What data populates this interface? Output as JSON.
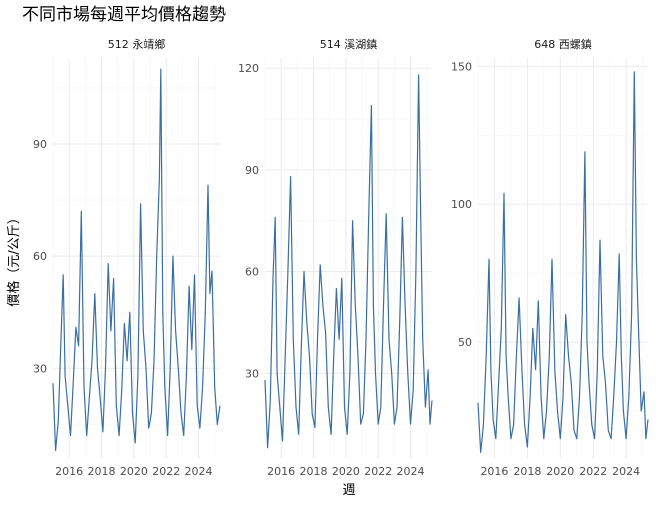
{
  "chart_data": {
    "type": "line",
    "title": "不同市場每週平均價格趨勢",
    "xlabel": "週",
    "ylabel": "價格（元/公斤）",
    "x_ticks": [
      "2016",
      "2018",
      "2020",
      "2022",
      "2024"
    ],
    "xlim": [
      "2015-01-01",
      "2025-04-30"
    ],
    "series_color": "#3a6ea5",
    "grid": true,
    "facets": [
      {
        "name": "512 永靖鄉",
        "ylim": [
          6,
          113
        ],
        "y_ticks": [
          30,
          60,
          90
        ],
        "values": [
          {
            "x": "2015-01-01",
            "y": 26
          },
          {
            "x": "2015-03-01",
            "y": 8
          },
          {
            "x": "2015-05-01",
            "y": 16
          },
          {
            "x": "2015-07-01",
            "y": 38
          },
          {
            "x": "2015-08-20",
            "y": 55
          },
          {
            "x": "2015-10-01",
            "y": 28
          },
          {
            "x": "2015-12-01",
            "y": 20
          },
          {
            "x": "2016-02-01",
            "y": 12
          },
          {
            "x": "2016-04-01",
            "y": 26
          },
          {
            "x": "2016-06-01",
            "y": 41
          },
          {
            "x": "2016-08-01",
            "y": 36
          },
          {
            "x": "2016-10-01",
            "y": 72
          },
          {
            "x": "2016-12-01",
            "y": 25
          },
          {
            "x": "2017-02-01",
            "y": 12
          },
          {
            "x": "2017-04-01",
            "y": 22
          },
          {
            "x": "2017-06-01",
            "y": 32
          },
          {
            "x": "2017-08-01",
            "y": 50
          },
          {
            "x": "2017-10-01",
            "y": 30
          },
          {
            "x": "2017-12-01",
            "y": 22
          },
          {
            "x": "2018-02-01",
            "y": 13
          },
          {
            "x": "2018-04-01",
            "y": 30
          },
          {
            "x": "2018-06-01",
            "y": 58
          },
          {
            "x": "2018-08-01",
            "y": 40
          },
          {
            "x": "2018-10-01",
            "y": 54
          },
          {
            "x": "2018-12-01",
            "y": 20
          },
          {
            "x": "2019-02-01",
            "y": 12
          },
          {
            "x": "2019-04-01",
            "y": 24
          },
          {
            "x": "2019-06-01",
            "y": 42
          },
          {
            "x": "2019-08-01",
            "y": 32
          },
          {
            "x": "2019-10-01",
            "y": 45
          },
          {
            "x": "2019-12-01",
            "y": 18
          },
          {
            "x": "2020-02-01",
            "y": 10
          },
          {
            "x": "2020-04-01",
            "y": 28
          },
          {
            "x": "2020-06-01",
            "y": 74
          },
          {
            "x": "2020-08-01",
            "y": 40
          },
          {
            "x": "2020-10-01",
            "y": 30
          },
          {
            "x": "2020-12-01",
            "y": 14
          },
          {
            "x": "2021-02-01",
            "y": 18
          },
          {
            "x": "2021-04-01",
            "y": 32
          },
          {
            "x": "2021-06-01",
            "y": 60
          },
          {
            "x": "2021-08-01",
            "y": 81
          },
          {
            "x": "2021-09-01",
            "y": 110
          },
          {
            "x": "2021-10-15",
            "y": 45
          },
          {
            "x": "2021-12-01",
            "y": 25
          },
          {
            "x": "2022-02-01",
            "y": 12
          },
          {
            "x": "2022-04-01",
            "y": 30
          },
          {
            "x": "2022-06-01",
            "y": 60
          },
          {
            "x": "2022-08-01",
            "y": 40
          },
          {
            "x": "2022-10-01",
            "y": 30
          },
          {
            "x": "2022-12-01",
            "y": 18
          },
          {
            "x": "2023-02-01",
            "y": 12
          },
          {
            "x": "2023-04-01",
            "y": 28
          },
          {
            "x": "2023-06-01",
            "y": 52
          },
          {
            "x": "2023-08-01",
            "y": 35
          },
          {
            "x": "2023-10-01",
            "y": 55
          },
          {
            "x": "2023-12-01",
            "y": 20
          },
          {
            "x": "2024-02-01",
            "y": 14
          },
          {
            "x": "2024-04-01",
            "y": 25
          },
          {
            "x": "2024-06-01",
            "y": 45
          },
          {
            "x": "2024-08-01",
            "y": 79
          },
          {
            "x": "2024-09-15",
            "y": 50
          },
          {
            "x": "2024-11-01",
            "y": 56
          },
          {
            "x": "2025-01-01",
            "y": 25
          },
          {
            "x": "2025-03-01",
            "y": 15
          },
          {
            "x": "2025-04-30",
            "y": 20
          }
        ]
      },
      {
        "name": "514 溪湖鎮",
        "ylim": [
          5,
          123
        ],
        "y_ticks": [
          30,
          60,
          90,
          120
        ],
        "values": [
          {
            "x": "2015-01-01",
            "y": 28
          },
          {
            "x": "2015-03-01",
            "y": 8
          },
          {
            "x": "2015-05-01",
            "y": 22
          },
          {
            "x": "2015-07-01",
            "y": 58
          },
          {
            "x": "2015-08-20",
            "y": 76
          },
          {
            "x": "2015-10-01",
            "y": 30
          },
          {
            "x": "2015-12-01",
            "y": 20
          },
          {
            "x": "2016-02-01",
            "y": 10
          },
          {
            "x": "2016-04-01",
            "y": 35
          },
          {
            "x": "2016-06-01",
            "y": 60
          },
          {
            "x": "2016-08-01",
            "y": 88
          },
          {
            "x": "2016-10-01",
            "y": 40
          },
          {
            "x": "2016-12-01",
            "y": 20
          },
          {
            "x": "2017-02-01",
            "y": 12
          },
          {
            "x": "2017-04-01",
            "y": 38
          },
          {
            "x": "2017-06-01",
            "y": 60
          },
          {
            "x": "2017-08-01",
            "y": 45
          },
          {
            "x": "2017-10-01",
            "y": 35
          },
          {
            "x": "2017-12-01",
            "y": 18
          },
          {
            "x": "2018-02-01",
            "y": 14
          },
          {
            "x": "2018-04-01",
            "y": 40
          },
          {
            "x": "2018-06-01",
            "y": 62
          },
          {
            "x": "2018-08-01",
            "y": 50
          },
          {
            "x": "2018-10-01",
            "y": 42
          },
          {
            "x": "2018-12-01",
            "y": 20
          },
          {
            "x": "2019-02-01",
            "y": 12
          },
          {
            "x": "2019-04-01",
            "y": 35
          },
          {
            "x": "2019-06-01",
            "y": 55
          },
          {
            "x": "2019-08-01",
            "y": 40
          },
          {
            "x": "2019-10-01",
            "y": 58
          },
          {
            "x": "2019-12-01",
            "y": 20
          },
          {
            "x": "2020-02-01",
            "y": 12
          },
          {
            "x": "2020-04-01",
            "y": 30
          },
          {
            "x": "2020-06-01",
            "y": 75
          },
          {
            "x": "2020-08-01",
            "y": 50
          },
          {
            "x": "2020-10-01",
            "y": 35
          },
          {
            "x": "2020-12-01",
            "y": 15
          },
          {
            "x": "2021-02-01",
            "y": 18
          },
          {
            "x": "2021-04-01",
            "y": 40
          },
          {
            "x": "2021-06-01",
            "y": 76
          },
          {
            "x": "2021-08-01",
            "y": 109
          },
          {
            "x": "2021-09-15",
            "y": 50
          },
          {
            "x": "2021-11-01",
            "y": 30
          },
          {
            "x": "2022-01-01",
            "y": 15
          },
          {
            "x": "2022-03-01",
            "y": 20
          },
          {
            "x": "2022-05-01",
            "y": 50
          },
          {
            "x": "2022-07-01",
            "y": 77
          },
          {
            "x": "2022-09-01",
            "y": 40
          },
          {
            "x": "2022-11-01",
            "y": 30
          },
          {
            "x": "2023-01-01",
            "y": 15
          },
          {
            "x": "2023-03-01",
            "y": 20
          },
          {
            "x": "2023-05-01",
            "y": 45
          },
          {
            "x": "2023-07-01",
            "y": 76
          },
          {
            "x": "2023-09-01",
            "y": 50
          },
          {
            "x": "2023-11-01",
            "y": 30
          },
          {
            "x": "2024-01-01",
            "y": 15
          },
          {
            "x": "2024-03-01",
            "y": 25
          },
          {
            "x": "2024-05-01",
            "y": 60
          },
          {
            "x": "2024-07-01",
            "y": 118
          },
          {
            "x": "2024-08-15",
            "y": 78
          },
          {
            "x": "2024-10-01",
            "y": 40
          },
          {
            "x": "2024-12-01",
            "y": 20
          },
          {
            "x": "2025-02-01",
            "y": 31
          },
          {
            "x": "2025-03-15",
            "y": 15
          },
          {
            "x": "2025-04-30",
            "y": 22
          }
        ]
      },
      {
        "name": "648 西螺鎮",
        "ylim": [
          8,
          153
        ],
        "y_ticks": [
          50,
          100,
          150
        ],
        "values": [
          {
            "x": "2015-01-01",
            "y": 28
          },
          {
            "x": "2015-03-01",
            "y": 10
          },
          {
            "x": "2015-05-01",
            "y": 20
          },
          {
            "x": "2015-07-01",
            "y": 45
          },
          {
            "x": "2015-09-01",
            "y": 80
          },
          {
            "x": "2015-10-15",
            "y": 40
          },
          {
            "x": "2015-12-01",
            "y": 22
          },
          {
            "x": "2016-02-01",
            "y": 15
          },
          {
            "x": "2016-04-01",
            "y": 35
          },
          {
            "x": "2016-06-01",
            "y": 55
          },
          {
            "x": "2016-08-01",
            "y": 104
          },
          {
            "x": "2016-09-15",
            "y": 45
          },
          {
            "x": "2016-11-01",
            "y": 30
          },
          {
            "x": "2017-01-01",
            "y": 15
          },
          {
            "x": "2017-03-01",
            "y": 20
          },
          {
            "x": "2017-05-01",
            "y": 45
          },
          {
            "x": "2017-07-01",
            "y": 66
          },
          {
            "x": "2017-09-01",
            "y": 40
          },
          {
            "x": "2017-11-01",
            "y": 20
          },
          {
            "x": "2018-01-01",
            "y": 12
          },
          {
            "x": "2018-03-01",
            "y": 30
          },
          {
            "x": "2018-05-01",
            "y": 55
          },
          {
            "x": "2018-07-01",
            "y": 40
          },
          {
            "x": "2018-09-01",
            "y": 65
          },
          {
            "x": "2018-11-01",
            "y": 30
          },
          {
            "x": "2019-01-01",
            "y": 15
          },
          {
            "x": "2019-03-01",
            "y": 25
          },
          {
            "x": "2019-05-01",
            "y": 45
          },
          {
            "x": "2019-07-01",
            "y": 80
          },
          {
            "x": "2019-09-01",
            "y": 40
          },
          {
            "x": "2019-11-01",
            "y": 25
          },
          {
            "x": "2020-01-01",
            "y": 15
          },
          {
            "x": "2020-03-01",
            "y": 30
          },
          {
            "x": "2020-05-01",
            "y": 60
          },
          {
            "x": "2020-07-01",
            "y": 45
          },
          {
            "x": "2020-09-01",
            "y": 35
          },
          {
            "x": "2020-11-01",
            "y": 18
          },
          {
            "x": "2021-01-01",
            "y": 15
          },
          {
            "x": "2021-03-01",
            "y": 30
          },
          {
            "x": "2021-05-01",
            "y": 60
          },
          {
            "x": "2021-07-01",
            "y": 119
          },
          {
            "x": "2021-08-15",
            "y": 50
          },
          {
            "x": "2021-10-01",
            "y": 35
          },
          {
            "x": "2021-12-01",
            "y": 20
          },
          {
            "x": "2022-02-01",
            "y": 15
          },
          {
            "x": "2022-04-01",
            "y": 40
          },
          {
            "x": "2022-06-01",
            "y": 87
          },
          {
            "x": "2022-08-01",
            "y": 45
          },
          {
            "x": "2022-10-01",
            "y": 35
          },
          {
            "x": "2022-12-01",
            "y": 18
          },
          {
            "x": "2023-02-01",
            "y": 15
          },
          {
            "x": "2023-04-01",
            "y": 30
          },
          {
            "x": "2023-06-01",
            "y": 50
          },
          {
            "x": "2023-08-01",
            "y": 82
          },
          {
            "x": "2023-09-15",
            "y": 45
          },
          {
            "x": "2023-11-01",
            "y": 25
          },
          {
            "x": "2024-01-01",
            "y": 15
          },
          {
            "x": "2024-03-01",
            "y": 30
          },
          {
            "x": "2024-05-01",
            "y": 60
          },
          {
            "x": "2024-07-01",
            "y": 148
          },
          {
            "x": "2024-08-15",
            "y": 80
          },
          {
            "x": "2024-10-01",
            "y": 55
          },
          {
            "x": "2024-12-01",
            "y": 25
          },
          {
            "x": "2025-02-01",
            "y": 32
          },
          {
            "x": "2025-03-15",
            "y": 15
          },
          {
            "x": "2025-04-30",
            "y": 22
          }
        ]
      }
    ]
  }
}
